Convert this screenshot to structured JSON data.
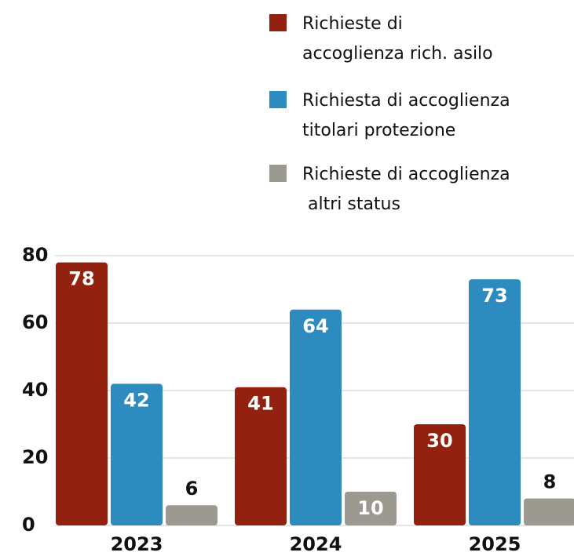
{
  "chart_data": {
    "type": "bar",
    "categories": [
      "2023",
      "2024",
      "2025"
    ],
    "series": [
      {
        "name": "Richieste di\naccoglienza rich. asilo",
        "color": "#92220f",
        "values": [
          78,
          41,
          30
        ]
      },
      {
        "name": "Richiesta di accoglienza\ntitolari protezione",
        "color": "#2e8bc0",
        "values": [
          42,
          64,
          73
        ]
      },
      {
        "name": "Richieste di accoglienza\n altri status",
        "color": "#9c9a90",
        "values": [
          6,
          10,
          8
        ]
      }
    ],
    "ylim": [
      0,
      80
    ],
    "yticks": [
      0,
      20,
      40,
      60,
      80
    ],
    "grid": true,
    "legend": "top-right"
  }
}
